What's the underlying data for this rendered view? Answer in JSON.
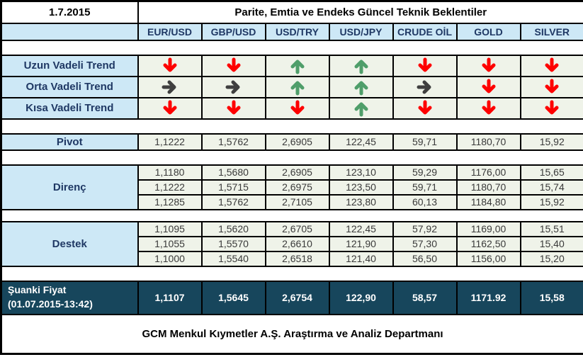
{
  "chart_data": {
    "type": "table",
    "date": "1.7.2015",
    "title": "Parite, Emtia ve Endeks Güncel Teknik Beklentiler",
    "columns": [
      "EUR/USD",
      "GBP/USD",
      "USD/TRY",
      "USD/JPY",
      "CRUDE OİL",
      "GOLD",
      "SILVER"
    ],
    "trend_rows": [
      {
        "label": "Uzun Vadeli Trend",
        "cells": [
          "down",
          "down",
          "up",
          "up",
          "down",
          "down",
          "down"
        ]
      },
      {
        "label": "Orta Vadeli Trend",
        "cells": [
          "right",
          "right",
          "up",
          "up",
          "right",
          "down",
          "down"
        ]
      },
      {
        "label": "Kısa Vadeli Trend",
        "cells": [
          "down",
          "down",
          "down",
          "up",
          "down",
          "down",
          "down"
        ]
      }
    ],
    "pivot": {
      "label": "Pivot",
      "values": [
        "1,1222",
        "1,5762",
        "2,6905",
        "122,45",
        "59,71",
        "1180,70",
        "15,92"
      ]
    },
    "resistance": {
      "label": "Direnç",
      "rows": [
        [
          "1,1180",
          "1,5680",
          "2,6905",
          "123,10",
          "59,29",
          "1176,00",
          "15,65"
        ],
        [
          "1,1222",
          "1,5715",
          "2,6975",
          "123,50",
          "59,71",
          "1180,70",
          "15,74"
        ],
        [
          "1,1285",
          "1,5762",
          "2,7105",
          "123,80",
          "60,13",
          "1184,80",
          "15,92"
        ]
      ]
    },
    "support": {
      "label": "Destek",
      "rows": [
        [
          "1,1095",
          "1,5620",
          "2,6705",
          "122,45",
          "57,92",
          "1169,00",
          "15,51"
        ],
        [
          "1,1055",
          "1,5570",
          "2,6610",
          "121,90",
          "57,30",
          "1162,50",
          "15,40"
        ],
        [
          "1,1000",
          "1,5540",
          "2,6518",
          "121,40",
          "56,50",
          "1156,00",
          "15,20"
        ]
      ]
    },
    "current": {
      "label": "Şuanki Fiyat",
      "timestamp": "(01.07.2015-13:42)",
      "values": [
        "1,1107",
        "1,5645",
        "2,6754",
        "122,90",
        "58,57",
        "1171.92",
        "15,58"
      ]
    },
    "footer": "GCM Menkul Kıymetler A.Ş. Araştırma ve Analiz Departmanı"
  },
  "colors": {
    "header_blue_bg": "#cde8f6",
    "cell_green_bg": "#eff3e9",
    "current_row_bg": "#17465c",
    "label_text": "#1f3864",
    "number_text": "#3a3a3a",
    "arrow_up": "#4f9e6a",
    "arrow_down": "#fe0000",
    "arrow_right": "#3f3f3f"
  }
}
